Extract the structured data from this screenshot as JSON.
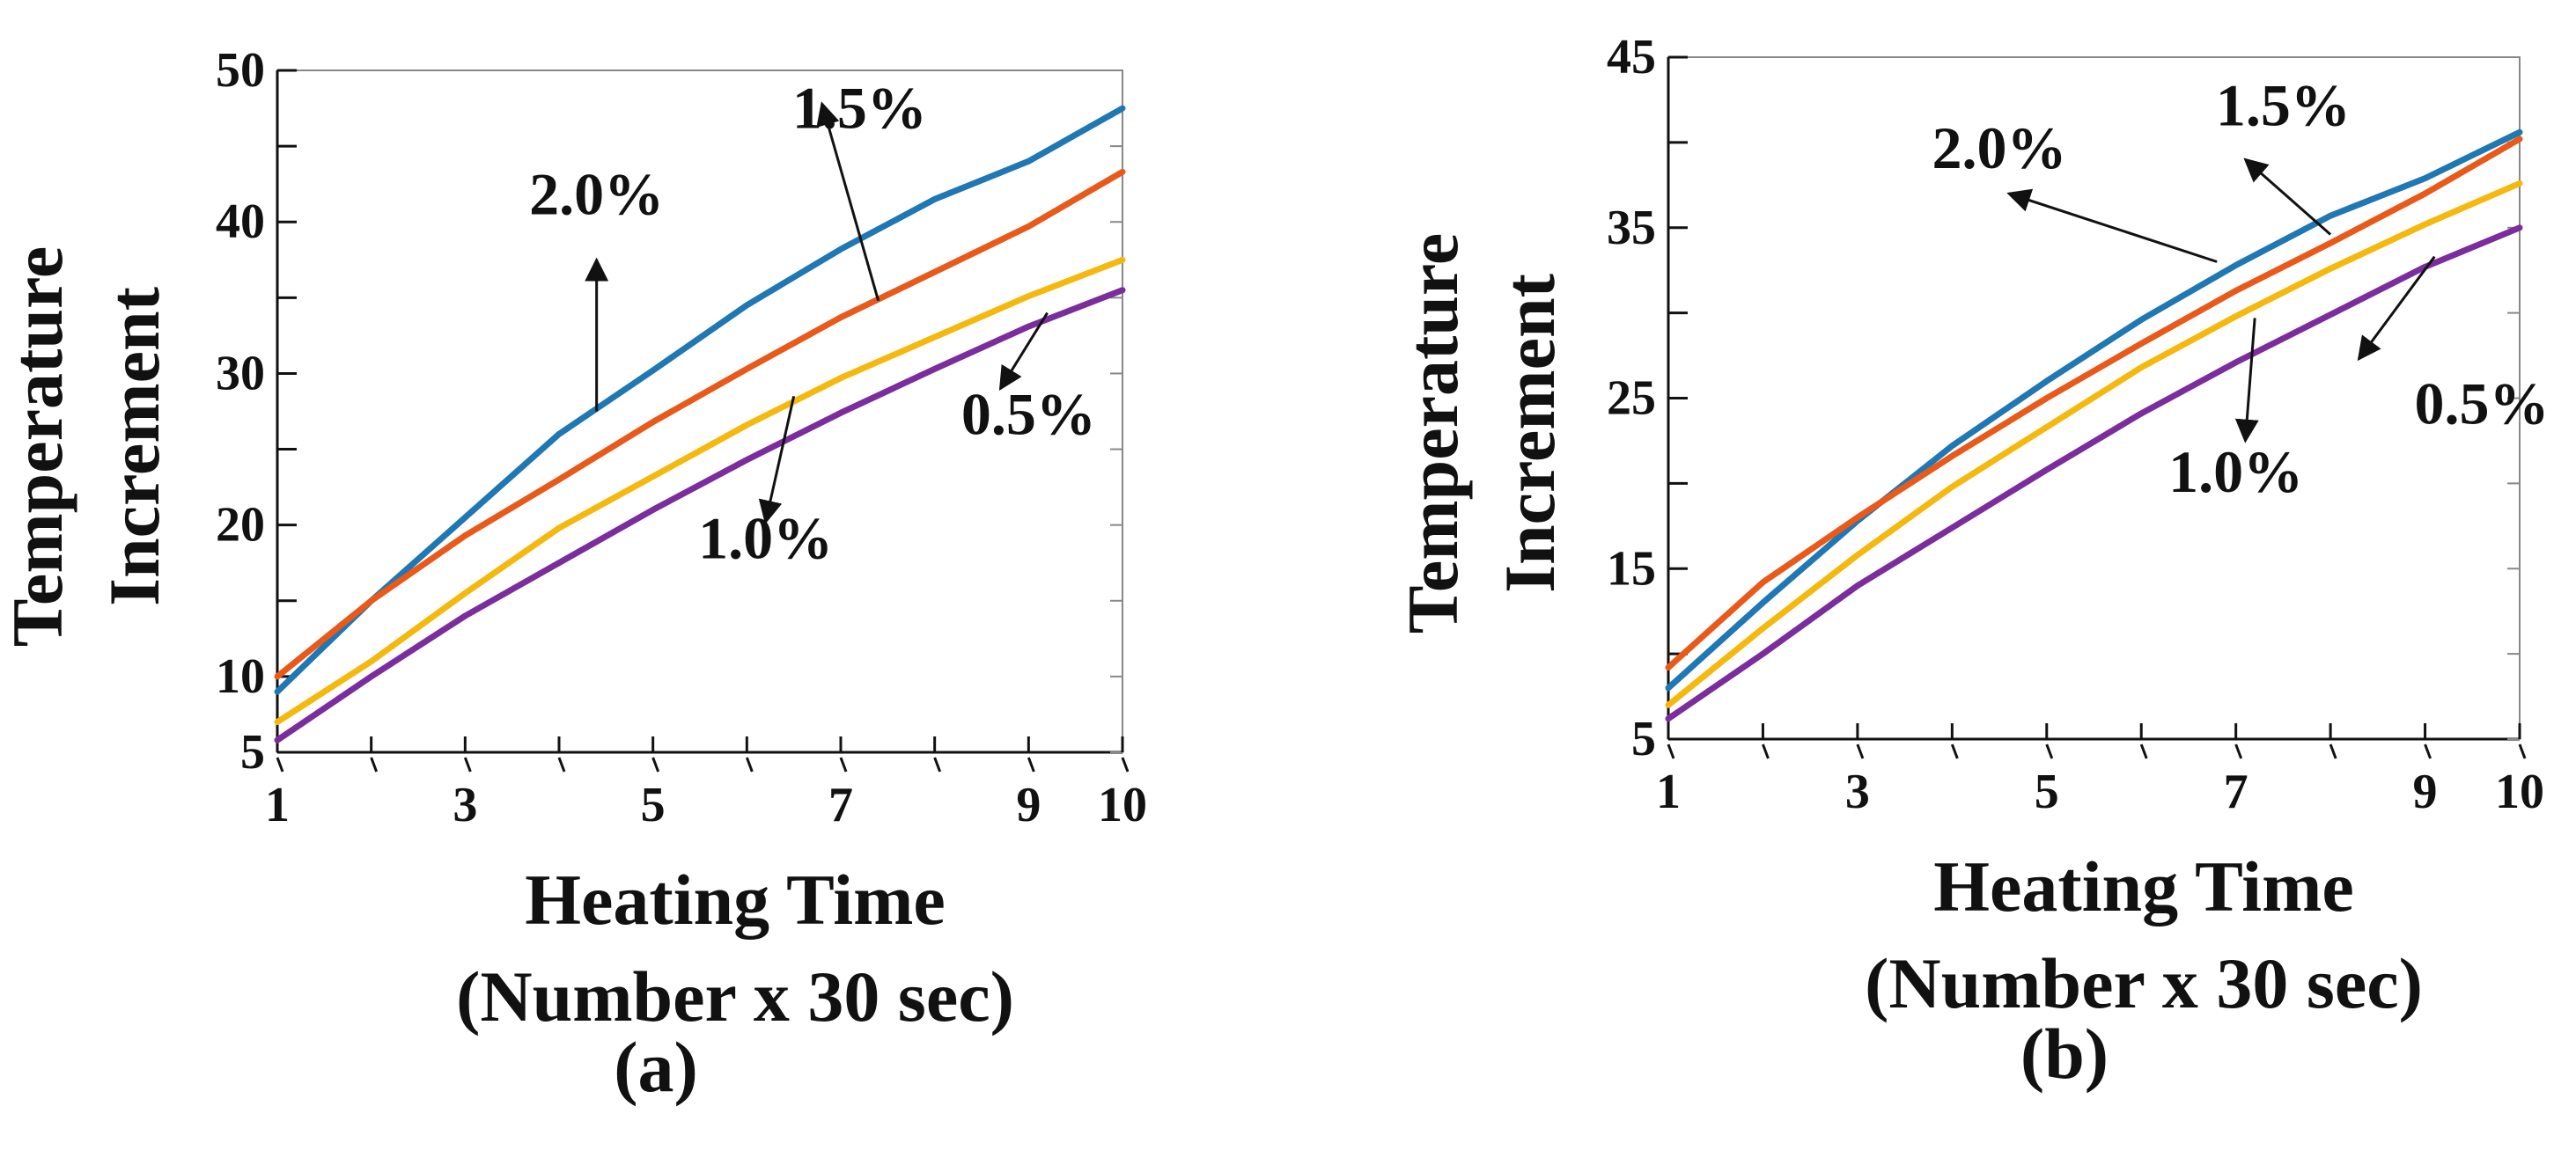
{
  "chart_data": [
    {
      "type": "line",
      "panel_label": "(a)",
      "xlabel_lines": [
        "Heating Time",
        "(Number x 30 sec)"
      ],
      "ylabel_lines": [
        "Temperature",
        "Increment"
      ],
      "xlim": [
        1,
        10
      ],
      "ylim": [
        5,
        50
      ],
      "x_ticks": [
        1,
        3,
        5,
        7,
        9,
        10
      ],
      "y_ticks": [
        5,
        10,
        20,
        30,
        40,
        50
      ],
      "x": [
        1,
        2,
        3,
        4,
        5,
        6,
        7,
        8,
        9,
        10
      ],
      "series": [
        {
          "name": "2.0%",
          "color": "#1f77b4",
          "values": [
            9,
            15,
            20.5,
            26,
            30.2,
            34.5,
            38.2,
            41.5,
            44,
            47.5
          ]
        },
        {
          "name": "1.5%",
          "color": "#e8591a",
          "values": [
            10,
            15,
            19.3,
            23,
            26.8,
            30.3,
            33.7,
            36.7,
            39.7,
            43.3
          ]
        },
        {
          "name": "1.0%",
          "color": "#f5b80e",
          "values": [
            7,
            11,
            15.5,
            19.8,
            23.2,
            26.6,
            29.7,
            32.4,
            35.1,
            37.5
          ]
        },
        {
          "name": "0.5%",
          "color": "#7b2d9e",
          "values": [
            5.8,
            10,
            14,
            17.5,
            21,
            24.3,
            27.4,
            30.3,
            33.1,
            35.5
          ]
        }
      ],
      "annotations": [
        {
          "text": "1.5%",
          "text_at": [
            7.2,
            46.2
          ],
          "arrow_from": [
            7.4,
            34.8
          ],
          "arrow_to": [
            6.8,
            47.8
          ]
        },
        {
          "text": "2.0%",
          "text_at": [
            4.4,
            40.5
          ],
          "arrow_from": [
            4.4,
            27.5
          ],
          "arrow_to": [
            4.4,
            37.5
          ]
        },
        {
          "text": "1.0%",
          "text_at": [
            6.2,
            17.8
          ],
          "arrow_from": [
            6.5,
            28.5
          ],
          "arrow_to": [
            6.2,
            20.2
          ]
        },
        {
          "text": "0.5%",
          "text_at": [
            9.0,
            26.0
          ],
          "arrow_from": [
            9.2,
            34.0
          ],
          "arrow_to": [
            8.7,
            29.0
          ]
        }
      ]
    },
    {
      "type": "line",
      "panel_label": "(b)",
      "xlabel_lines": [
        "Heating Time",
        "(Number x 30 sec)"
      ],
      "ylabel_lines": [
        "Temperature",
        "Increment"
      ],
      "xlim": [
        1,
        10
      ],
      "ylim": [
        5,
        45
      ],
      "x_ticks": [
        1,
        3,
        5,
        7,
        9,
        10
      ],
      "y_ticks": [
        5,
        15,
        25,
        35,
        45
      ],
      "x": [
        1,
        2,
        3,
        4,
        5,
        6,
        7,
        8,
        9,
        10
      ],
      "series": [
        {
          "name": "2.0%",
          "color": "#1f77b4",
          "values": [
            8,
            13,
            17.8,
            22.2,
            26,
            29.6,
            32.8,
            35.7,
            37.9,
            40.6
          ]
        },
        {
          "name": "1.5%",
          "color": "#e8591a",
          "values": [
            9.2,
            14.2,
            18,
            21.6,
            25,
            28.2,
            31.3,
            34.1,
            37,
            40.2
          ]
        },
        {
          "name": "1.0%",
          "color": "#f5b80e",
          "values": [
            7,
            11.5,
            15.8,
            19.8,
            23.3,
            26.8,
            29.8,
            32.6,
            35.2,
            37.6
          ]
        },
        {
          "name": "0.5%",
          "color": "#7b2d9e",
          "values": [
            6.2,
            10,
            14,
            17.4,
            20.8,
            24.1,
            27.1,
            29.9,
            32.7,
            35
          ]
        }
      ],
      "annotations": [
        {
          "text": "2.0%",
          "text_at": [
            4.5,
            38.5
          ],
          "arrow_from": [
            6.8,
            33.0
          ],
          "arrow_to": [
            4.6,
            37.0
          ]
        },
        {
          "text": "1.5%",
          "text_at": [
            7.5,
            41.0
          ],
          "arrow_from": [
            8.0,
            34.6
          ],
          "arrow_to": [
            7.1,
            39.0
          ]
        },
        {
          "text": "1.0%",
          "text_at": [
            7.0,
            19.5
          ],
          "arrow_from": [
            7.2,
            29.7
          ],
          "arrow_to": [
            7.1,
            22.5
          ]
        },
        {
          "text": "0.5%",
          "text_at": [
            9.6,
            23.5
          ],
          "arrow_from": [
            9.1,
            33.3
          ],
          "arrow_to": [
            8.3,
            27.3
          ]
        }
      ]
    }
  ]
}
